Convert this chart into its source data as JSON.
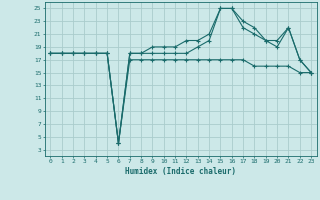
{
  "xlabel": "Humidex (Indice chaleur)",
  "bg_color": "#cce8e8",
  "grid_color": "#aacccc",
  "line_color": "#1a6b6b",
  "xlim": [
    -0.5,
    23.5
  ],
  "ylim": [
    2,
    26
  ],
  "xticks": [
    0,
    1,
    2,
    3,
    4,
    5,
    6,
    7,
    8,
    9,
    10,
    11,
    12,
    13,
    14,
    15,
    16,
    17,
    18,
    19,
    20,
    21,
    22,
    23
  ],
  "yticks": [
    3,
    5,
    7,
    9,
    11,
    13,
    15,
    17,
    19,
    21,
    23,
    25
  ],
  "line1_x": [
    0,
    1,
    2,
    3,
    4,
    5,
    6,
    7,
    8,
    9,
    10,
    11,
    12,
    13,
    14,
    15,
    16,
    17,
    18,
    19,
    20,
    21,
    22,
    23
  ],
  "line1_y": [
    18,
    18,
    18,
    18,
    18,
    18,
    4,
    17,
    17,
    17,
    17,
    17,
    17,
    17,
    17,
    17,
    17,
    17,
    16,
    16,
    16,
    16,
    15,
    15
  ],
  "line2_x": [
    0,
    1,
    2,
    3,
    4,
    5,
    6,
    7,
    8,
    9,
    10,
    11,
    12,
    13,
    14,
    15,
    16,
    17,
    18,
    19,
    20,
    21,
    22,
    23
  ],
  "line2_y": [
    18,
    18,
    18,
    18,
    18,
    18,
    4,
    18,
    18,
    19,
    19,
    19,
    20,
    20,
    21,
    25,
    25,
    23,
    22,
    20,
    19,
    22,
    17,
    15
  ],
  "line3_x": [
    0,
    1,
    2,
    3,
    4,
    5,
    6,
    7,
    8,
    9,
    10,
    11,
    12,
    13,
    14,
    15,
    16,
    17,
    18,
    19,
    20,
    21,
    22,
    23
  ],
  "line3_y": [
    18,
    18,
    18,
    18,
    18,
    18,
    4,
    18,
    18,
    18,
    18,
    18,
    18,
    19,
    20,
    25,
    25,
    22,
    21,
    20,
    20,
    22,
    17,
    15
  ]
}
